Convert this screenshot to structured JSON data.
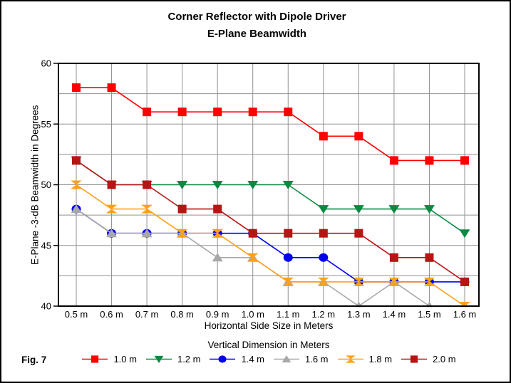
{
  "title_line1": "Corner Reflector with Dipole Driver",
  "title_line2": "E-Plane Beamwidth",
  "fig_label": "Fig. 7",
  "chart_data": {
    "type": "line",
    "title": "Corner Reflector with Dipole Driver",
    "subtitle": "E-Plane Beamwidth",
    "xlabel": "Horizontal Side Size in Meters",
    "ylabel": "E-Plane -3-dB Beamwidth in Degrees",
    "legend_title": "Vertical Dimension in Meters",
    "legend_position": "bottom",
    "grid": true,
    "x": [
      0.5,
      0.6,
      0.7,
      0.8,
      0.9,
      1.0,
      1.1,
      1.2,
      1.3,
      1.4,
      1.5,
      1.6
    ],
    "x_tick_labels": [
      "0.5 m",
      "0.6 m",
      "0.7 m",
      "0.8 m",
      "0.9 m",
      "1.0 m",
      "1.1 m",
      "1.2 m",
      "1.3 m",
      "1.4 m",
      "1.5 m",
      "1.6 m"
    ],
    "ylim": [
      40,
      60
    ],
    "y_ticks": [
      60,
      55,
      50,
      45,
      40
    ],
    "y_grid_step": 2.5,
    "series": [
      {
        "name": "1.0 m",
        "color": "#ff0000",
        "marker": "square",
        "values": [
          58,
          58,
          56,
          56,
          56,
          56,
          56,
          54,
          54,
          52,
          52,
          52
        ]
      },
      {
        "name": "1.2 m",
        "color": "#0a8a40",
        "marker": "triangle-down",
        "values": [
          52,
          50,
          50,
          50,
          50,
          50,
          50,
          48,
          48,
          48,
          48,
          46
        ]
      },
      {
        "name": "1.4 m",
        "color": "#0000ee",
        "marker": "circle",
        "values": [
          48,
          46,
          46,
          46,
          46,
          46,
          44,
          44,
          42,
          42,
          42,
          42
        ]
      },
      {
        "name": "1.6 m",
        "color": "#a8a8a8",
        "marker": "triangle-up",
        "values": [
          48,
          46,
          46,
          46,
          44,
          44,
          42,
          42,
          40,
          42,
          40,
          40
        ]
      },
      {
        "name": "1.8 m",
        "color": "#ffa115",
        "marker": "hourglass",
        "values": [
          50,
          48,
          48,
          46,
          46,
          44,
          42,
          42,
          42,
          42,
          42,
          40
        ]
      },
      {
        "name": "2.0 m",
        "color": "#b81414",
        "marker": "square",
        "values": [
          52,
          50,
          50,
          48,
          48,
          46,
          46,
          46,
          46,
          44,
          44,
          42
        ]
      }
    ],
    "colors": {
      "grid": "#909090",
      "axis": "#000000",
      "background": "#ffffff"
    }
  }
}
